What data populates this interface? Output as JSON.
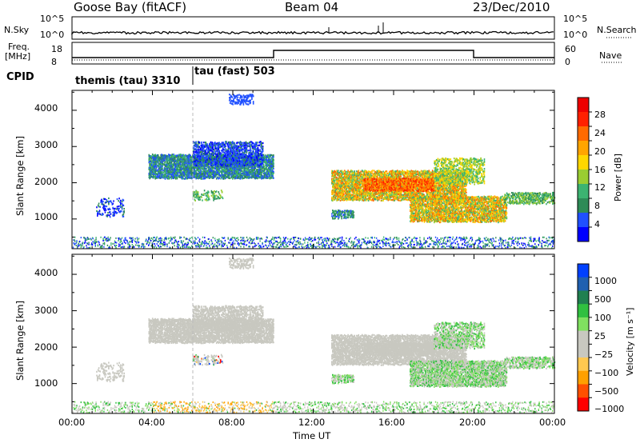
{
  "header": {
    "station": "Goose Bay (fitACF)",
    "beam": "Beam 04",
    "date": "23/Dec/2010"
  },
  "panels": {
    "nsky": {
      "label": "N.Sky",
      "right_label": "N.Search",
      "left_ticks": [
        "10^5",
        "10^0"
      ],
      "right_ticks": [
        "10^5",
        "10^0"
      ]
    },
    "freq": {
      "label_line1": "Freq.",
      "label_line2": "[MHz]",
      "right_label": "Nave",
      "left_ticks": [
        "18",
        "8"
      ],
      "right_ticks": [
        "60",
        "0"
      ]
    },
    "cpid": {
      "label": "CPID",
      "segments": [
        "themis (tau) 3310",
        "tau (fast) 503"
      ]
    }
  },
  "chart_data": [
    {
      "type": "heatmap",
      "name": "power",
      "ylabel": "Slant Range [km]",
      "y_ticks": [
        "4000",
        "3000",
        "2000",
        "1000"
      ],
      "ylim": [
        180,
        4550
      ],
      "colorbar": {
        "label": "Power [dB]",
        "ticks": [
          "28",
          "24",
          "20",
          "16",
          "12",
          "8",
          "4"
        ],
        "range": [
          0,
          30
        ]
      },
      "echo_regions": [
        {
          "t": [
            4.0,
            10.0
          ],
          "range_km": [
            2000,
            3000
          ],
          "db": 10
        },
        {
          "t": [
            13.0,
            19.5
          ],
          "range_km": [
            1500,
            2300
          ],
          "db": 20
        },
        {
          "t": [
            17.0,
            21.5
          ],
          "range_km": [
            1000,
            1800
          ],
          "db": 16
        }
      ]
    },
    {
      "type": "heatmap",
      "name": "velocity",
      "ylabel": "Slant Range [km]",
      "y_ticks": [
        "4000",
        "3000",
        "2000",
        "1000"
      ],
      "ylim": [
        180,
        4550
      ],
      "colorbar": {
        "label": "Velocity [m s⁻¹]",
        "ticks": [
          "1000",
          "500",
          "100",
          "25",
          "−25",
          "−100",
          "−500",
          "−1000"
        ],
        "range": [
          -1200,
          1200
        ]
      },
      "x_ticks": [
        "00:00",
        "04:00",
        "08:00",
        "12:00",
        "16:00",
        "20:00",
        "00:00"
      ],
      "xlabel": "Time UT",
      "xlim": [
        0,
        24
      ]
    }
  ],
  "colors": {
    "power_scale": [
      "#0000ff",
      "#2050ff",
      "#2e8b57",
      "#3cb371",
      "#9acd32",
      "#ffd700",
      "#ffa500",
      "#ff6a00",
      "#ff2000",
      "#ee0000"
    ],
    "velocity_scale": [
      "#ff0000",
      "#ff5000",
      "#ffa000",
      "#ffc850",
      "#c8c8c0",
      "#c8c8c0",
      "#80e060",
      "#30c040",
      "#208050",
      "#2060b0",
      "#0040ff"
    ],
    "ground_scatter": "#c8c8c0"
  }
}
